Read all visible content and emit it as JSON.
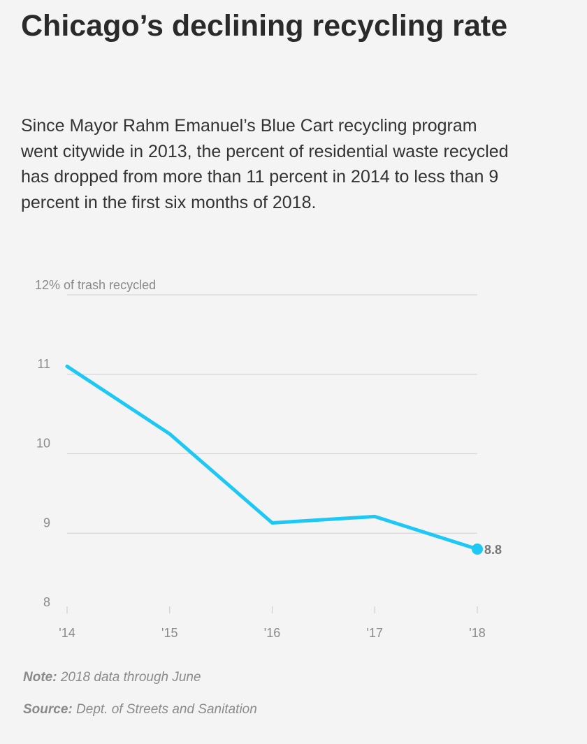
{
  "title": "Chicago’s declining recycling rate",
  "description": "Since Mayor Rahm Emanuel’s Blue Cart recycling program went citywide in 2013, the percent of residential waste recycled has dropped from more than 11 percent in 2014 to less than 9 percent in the first six months of 2018.",
  "note": {
    "label": "Note:",
    "text": "2018 data through June"
  },
  "source": {
    "label": "Source:",
    "text": "Dept. of Streets and Sanitation"
  },
  "chart_data": {
    "type": "line",
    "ylabel": "% of trash recycled",
    "ylim": [
      8,
      12
    ],
    "y_ticks": [
      8,
      9,
      10,
      11,
      12
    ],
    "y_tick_labels": [
      "8",
      "9",
      "10",
      "11",
      "12"
    ],
    "x": [
      "'14",
      "'15",
      "'16",
      "'17",
      "'18"
    ],
    "series": [
      {
        "values": [
          11.1,
          10.25,
          9.13,
          9.21,
          8.8
        ],
        "color": "#1ec8f5"
      }
    ],
    "end_label": "8.8",
    "grid": true
  }
}
